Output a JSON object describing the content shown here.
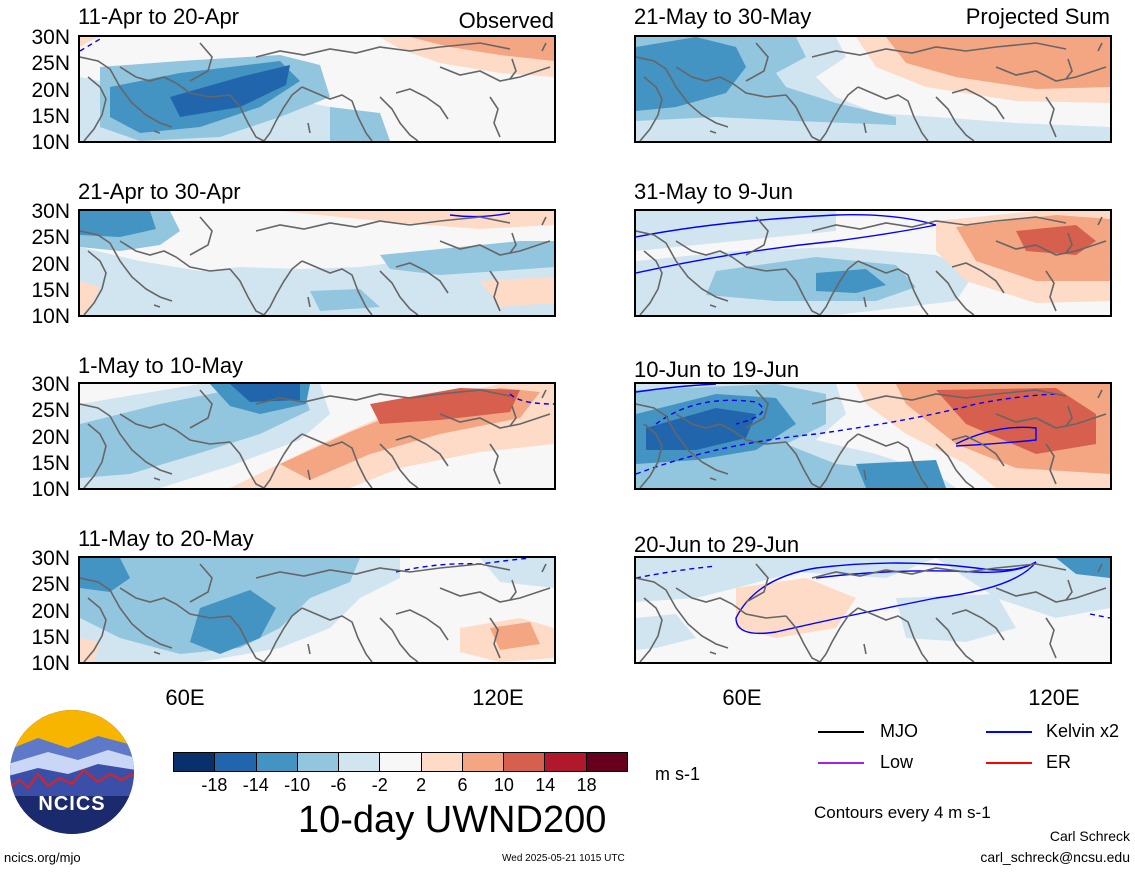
{
  "figure": {
    "title": "10-day UWND200",
    "units": "m s-1",
    "contour_note": "Contours every 4 m s-1",
    "author": "Carl Schreck",
    "email": "carl_schreck@ncsu.edu",
    "site": "ncics.org/mjo",
    "timestamp": "Wed 2025-05-21 1015 UTC",
    "logo_text": "NCICS"
  },
  "columns": {
    "left_label": "Observed",
    "right_label": "Projected Sum"
  },
  "axes": {
    "y_ticks": [
      "30N",
      "25N",
      "20N",
      "15N",
      "10N"
    ],
    "x_ticks": [
      "60E",
      "120E"
    ]
  },
  "panels_left": [
    {
      "title": "11-Apr to 20-Apr"
    },
    {
      "title": "21-Apr to 30-Apr"
    },
    {
      "title": "1-May to 10-May"
    },
    {
      "title": "11-May to 20-May"
    }
  ],
  "panels_right": [
    {
      "title": "21-May to 30-May"
    },
    {
      "title": "31-May to 9-Jun"
    },
    {
      "title": "10-Jun to 19-Jun"
    },
    {
      "title": "20-Jun to 29-Jun"
    }
  ],
  "colorbar": {
    "labels": [
      "-18",
      "-14",
      "-10",
      "-6",
      "-2",
      "2",
      "6",
      "10",
      "14",
      "18"
    ],
    "colors": [
      "#08306b",
      "#2166ac",
      "#4393c3",
      "#92c5de",
      "#d1e5f0",
      "#f7f7f7",
      "#fddbc7",
      "#f4a582",
      "#d6604d",
      "#b2182b",
      "#67001f"
    ]
  },
  "legend": [
    {
      "label": "MJO",
      "color": "#000000"
    },
    {
      "label": "Kelvin x2",
      "color": "#0000ff"
    },
    {
      "label": "Low",
      "color": "#a020f0"
    },
    {
      "label": "ER",
      "color": "#ff0000"
    }
  ]
}
